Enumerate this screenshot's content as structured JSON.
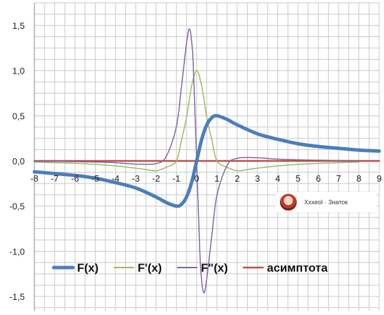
{
  "chart_data": {
    "type": "line",
    "title": "",
    "xlabel": "",
    "ylabel": "",
    "xlim": [
      -8,
      9
    ],
    "ylim": [
      -1.5,
      1.5
    ],
    "x_ticks": [
      "-8",
      "-7",
      "-6",
      "-5",
      "-4",
      "-3",
      "-2",
      "-1",
      "0",
      "1",
      "2",
      "3",
      "4",
      "5",
      "6",
      "7",
      "8",
      "9"
    ],
    "y_ticks": [
      "-1,5",
      "-1,0",
      "-0,5",
      "0,0",
      "0,5",
      "1,0",
      "1,5"
    ],
    "y_tick_values": [
      -1.5,
      -1.0,
      -0.5,
      0.0,
      0.5,
      1.0,
      1.5
    ],
    "grid": true,
    "legend_position": "bottom-left",
    "series": [
      {
        "name": "F(x)",
        "color": "#4a7ebb",
        "width": 5,
        "x": [
          -8,
          -7,
          -6,
          -5,
          -4,
          -3,
          -2,
          -1.5,
          -1,
          -0.75,
          -0.5,
          -0.25,
          0,
          0.25,
          0.5,
          0.75,
          1,
          1.5,
          2,
          3,
          4,
          5,
          6,
          7,
          8,
          9
        ],
        "y": [
          -0.12,
          -0.14,
          -0.16,
          -0.19,
          -0.24,
          -0.3,
          -0.4,
          -0.46,
          -0.5,
          -0.48,
          -0.4,
          -0.24,
          0,
          0.24,
          0.4,
          0.48,
          0.5,
          0.46,
          0.4,
          0.3,
          0.24,
          0.19,
          0.16,
          0.14,
          0.12,
          0.11
        ]
      },
      {
        "name": "F'(x)",
        "color": "#9bbb59",
        "width": 1.5,
        "x": [
          -8,
          -7,
          -6,
          -5,
          -4,
          -3,
          -2.5,
          -2,
          -1.5,
          -1,
          -0.75,
          -0.5,
          -0.25,
          0,
          0.25,
          0.5,
          0.75,
          1,
          1.5,
          2,
          2.5,
          3,
          4,
          5,
          6,
          7,
          8
        ],
        "y": [
          -0.014,
          -0.02,
          -0.027,
          -0.038,
          -0.055,
          -0.08,
          -0.095,
          -0.11,
          -0.07,
          0,
          0.23,
          0.48,
          0.83,
          1.0,
          0.83,
          0.48,
          0.23,
          0,
          -0.07,
          -0.11,
          -0.095,
          -0.08,
          -0.055,
          -0.038,
          -0.027,
          -0.02,
          -0.014
        ]
      },
      {
        "name": "F\"(x)",
        "color": "#8064a2",
        "width": 1.5,
        "x": [
          -8,
          -6,
          -4,
          -3,
          -2,
          -1.5,
          -1,
          -0.75,
          -0.5,
          -0.35,
          -0.2,
          -0.1,
          0,
          0.1,
          0.2,
          0.35,
          0.5,
          0.75,
          1,
          1.5,
          2,
          3,
          4,
          6,
          8
        ],
        "y": [
          -0.003,
          -0.008,
          -0.02,
          -0.035,
          -0.03,
          0.05,
          0.38,
          0.82,
          1.3,
          1.46,
          1.2,
          0.65,
          0,
          -0.65,
          -1.2,
          -1.46,
          -1.3,
          -0.82,
          -0.38,
          -0.05,
          0.03,
          0.035,
          0.02,
          0.008,
          0.003
        ]
      },
      {
        "name": "асимптота",
        "color": "#be4b48",
        "width": 2.5,
        "x": [
          -8,
          9
        ],
        "y": [
          0,
          0
        ]
      }
    ]
  },
  "watermark": {
    "text": "Xxxeol · Знаток"
  }
}
